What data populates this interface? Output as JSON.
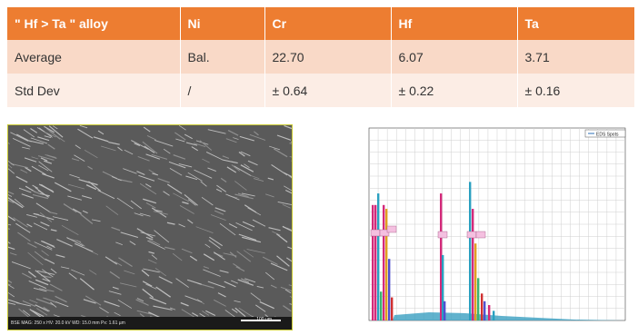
{
  "table": {
    "headers": [
      "\" Hf > Ta \" alloy",
      "Ni",
      "Cr",
      "Hf",
      "Ta"
    ],
    "rows": [
      [
        "Average",
        "Bal.",
        "22.70",
        "6.07",
        "3.71"
      ],
      [
        "Std Dev",
        "/",
        "± 0.64",
        "± 0.22",
        "± 0.16"
      ]
    ],
    "header_color": "#ed7d31"
  },
  "sem_image": {
    "info": "BSE MAG: 250 x HV: 20.0 kV WD: 15.0 mm Px: 1.61 µm",
    "scale_label": "100 µm"
  },
  "eds_spectrum": {
    "legend": "EDS Spots"
  }
}
